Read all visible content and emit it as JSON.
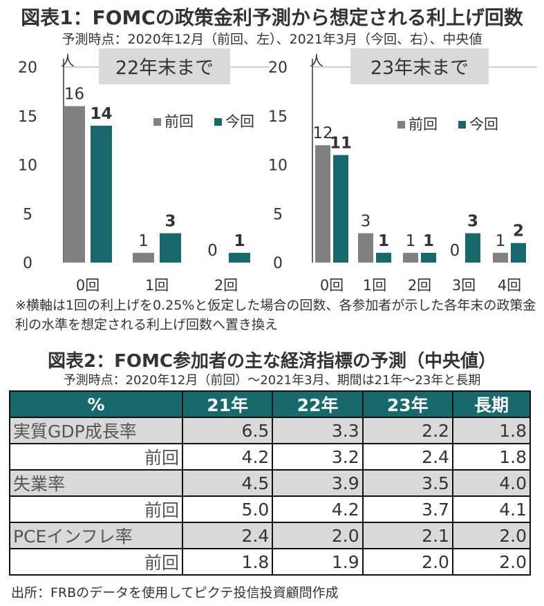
{
  "title1": "図表1：FOMCの政策金利予測から想定される利上げ回数",
  "subtitle1": "予測時点：2020年12月（前回、左）、2021年3月（今回、右）、中央値",
  "colors": {
    "prev": "#808080",
    "curr": "#17696b",
    "box": "#d9d9d9"
  },
  "chart_data": [
    {
      "type": "bar",
      "title": "22年末まで",
      "ylabel": "人",
      "ylim": [
        0,
        20
      ],
      "yticks": [
        "0",
        "5",
        "10",
        "15",
        "20"
      ],
      "categories": [
        "0回",
        "1回",
        "2回"
      ],
      "series": [
        {
          "name": "前回",
          "values": [
            16,
            1,
            0
          ]
        },
        {
          "name": "今回",
          "values": [
            14,
            3,
            1
          ]
        }
      ],
      "legend": "top-right",
      "grid": false
    },
    {
      "type": "bar",
      "title": "23年末まで",
      "ylabel": "人",
      "ylim": [
        0,
        20
      ],
      "yticks": [
        "0",
        "5",
        "10",
        "15",
        "20"
      ],
      "categories": [
        "0回",
        "1回",
        "2回",
        "3回",
        "4回"
      ],
      "series": [
        {
          "name": "前回",
          "values": [
            12,
            3,
            1,
            0,
            1
          ]
        },
        {
          "name": "今回",
          "values": [
            11,
            1,
            1,
            3,
            2
          ]
        }
      ],
      "legend": "top-right",
      "grid": false
    }
  ],
  "note": "※横軸は1回の利上げを0.25%と仮定した場合の回数、各参加者が示した各年末の政策金利の水準を想定される利上げ回数へ置き換え",
  "title2": "図表2：FOMC参加者の主な経済指標の予測（中央値）",
  "subtitle2": "予測時点：2020年12月（前回）～2021年3月、期間は21年～23年と長期",
  "table": {
    "headers": [
      "%",
      "21年",
      "22年",
      "23年",
      "長期"
    ],
    "rows": [
      {
        "label": "実質GDP成長率",
        "values": [
          "6.5",
          "3.3",
          "2.2",
          "1.8"
        ]
      },
      {
        "label": "前回",
        "values": [
          "4.2",
          "3.2",
          "2.4",
          "1.8"
        ]
      },
      {
        "label": "失業率",
        "values": [
          "4.5",
          "3.9",
          "3.5",
          "4.0"
        ]
      },
      {
        "label": "前回",
        "values": [
          "5.0",
          "4.2",
          "3.7",
          "4.1"
        ]
      },
      {
        "label": "PCEインフレ率",
        "values": [
          "2.4",
          "2.0",
          "2.1",
          "2.0"
        ]
      },
      {
        "label": "前回",
        "values": [
          "1.8",
          "1.9",
          "2.0",
          "2.0"
        ]
      }
    ]
  },
  "source": "出所：FRBのデータを使用してピクテ投信投資顧問作成"
}
